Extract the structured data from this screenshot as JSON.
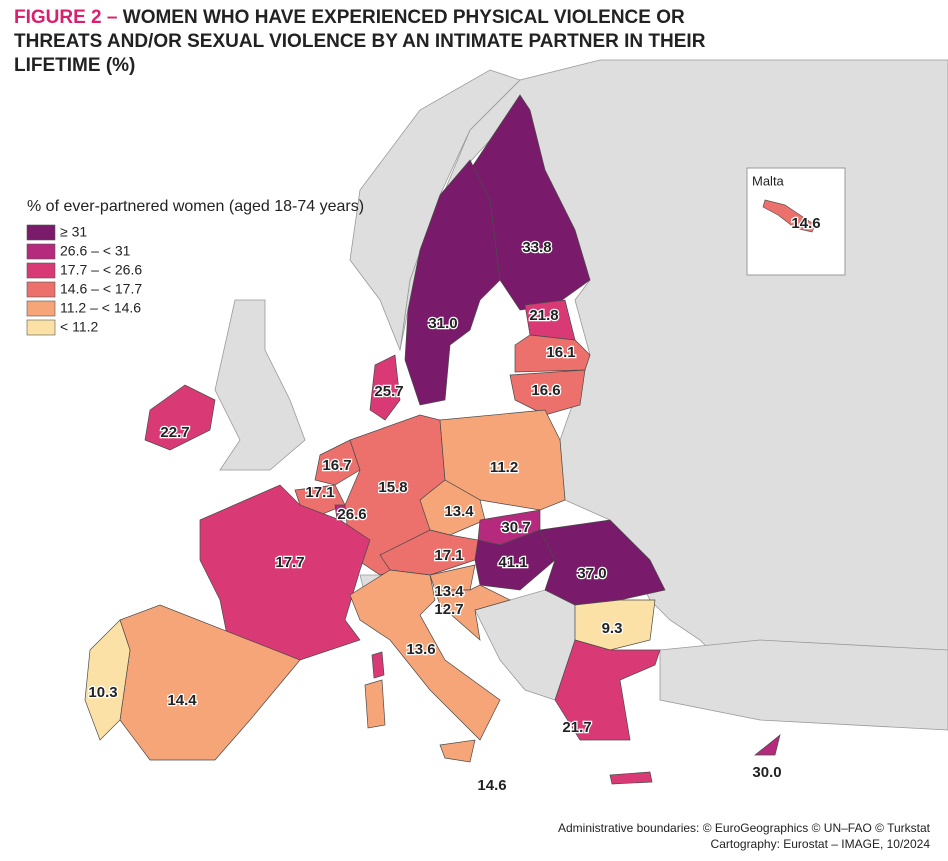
{
  "header": {
    "figure": "FIGURE 2 –",
    "title": "WOMEN WHO HAVE EXPERIENCED PHYSICAL VIOLENCE OR THREATS AND/OR SEXUAL VIOLENCE BY AN INTIMATE PARTNER IN THEIR LIFETIME (%)"
  },
  "legend": {
    "title": "% of ever-partnered women (aged 18-74 years)",
    "items": [
      {
        "label": "≥ 31",
        "color": "#7a1a6a"
      },
      {
        "label": "26.6 – < 31",
        "color": "#b52a7d"
      },
      {
        "label": "17.7 – < 26.6",
        "color": "#d93a75"
      },
      {
        "label": "14.6 – < 17.7",
        "color": "#ec706b"
      },
      {
        "label": "11.2 – < 14.6",
        "color": "#f5a577"
      },
      {
        "label": "< 11.2",
        "color": "#fbe1a5"
      }
    ]
  },
  "regions": [
    {
      "value": "33.8",
      "color": "#7a1a6a"
    },
    {
      "value": "31.0",
      "color": "#7a1a6a"
    },
    {
      "value": "21.8",
      "color": "#d93a75"
    },
    {
      "value": "16.1",
      "color": "#ec706b"
    },
    {
      "value": "16.6",
      "color": "#ec706b"
    },
    {
      "value": "25.7",
      "color": "#d93a75"
    },
    {
      "value": "22.7",
      "color": "#d93a75"
    },
    {
      "value": "16.7",
      "color": "#ec706b"
    },
    {
      "value": "17.1",
      "color": "#ec706b"
    },
    {
      "value": "26.6",
      "color": "#b52a7d"
    },
    {
      "value": "15.8",
      "color": "#ec706b"
    },
    {
      "value": "11.2",
      "color": "#f5a577"
    },
    {
      "value": "13.4",
      "color": "#f5a577"
    },
    {
      "value": "30.7",
      "color": "#b52a7d"
    },
    {
      "value": "17.1",
      "color": "#ec706b"
    },
    {
      "value": "41.1",
      "color": "#7a1a6a"
    },
    {
      "value": "37.0",
      "color": "#7a1a6a"
    },
    {
      "value": "13.4",
      "color": "#f5a577"
    },
    {
      "value": "12.7",
      "color": "#f5a577"
    },
    {
      "value": "9.3",
      "color": "#fbe1a5"
    },
    {
      "value": "21.7",
      "color": "#d93a75"
    },
    {
      "value": "17.7",
      "color": "#d93a75"
    },
    {
      "value": "13.6",
      "color": "#f5a577"
    },
    {
      "value": "14.4",
      "color": "#f5a577"
    },
    {
      "value": "10.3",
      "color": "#fbe1a5"
    },
    {
      "value": "30.0",
      "color": "#b52a7d"
    },
    {
      "value": "14.6",
      "color": "#ec706b"
    }
  ],
  "inset": {
    "title": "Malta",
    "value": "14.6",
    "color": "#ec706b"
  },
  "footer": {
    "line1": "Administrative boundaries: © EuroGeographics © UN–FAO © Turkstat",
    "line2": "Cartography: Eurostat – IMAGE, 10/2024"
  }
}
